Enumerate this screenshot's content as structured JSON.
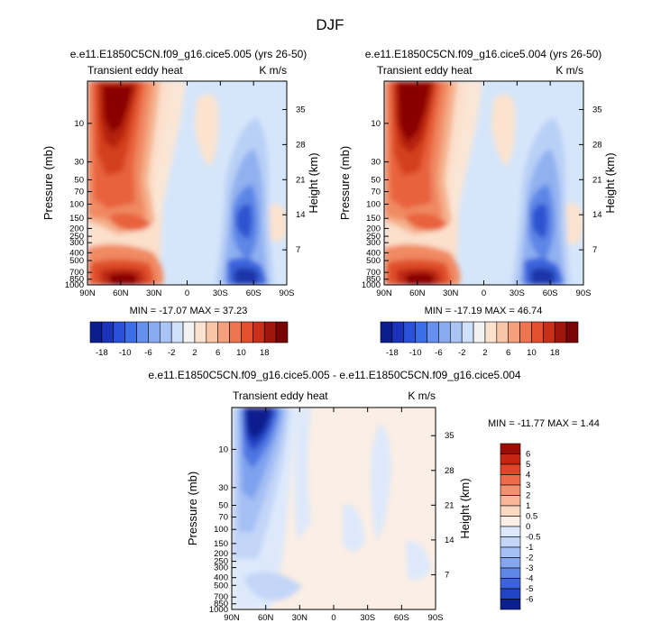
{
  "main_title": "DJF",
  "panel_left": {
    "title": "e.e11.E1850C5CN.f09_g16.cice5.005 (yrs 26-50)",
    "left_label": "Transient eddy heat",
    "units": "K m/s",
    "min_max": "MIN = -17.07   MAX =  37.23"
  },
  "panel_right": {
    "title": "e.e11.E1850C5CN.f09_g16.cice5.004 (yrs 26-50)",
    "left_label": "Transient eddy heat",
    "units": "K m/s",
    "min_max": "MIN = -17.19   MAX =  46.74"
  },
  "panel_diff": {
    "title": "e.e11.E1850C5CN.f09_g16.cice5.005 - e.e11.E1850C5CN.f09_g16.cice5.004",
    "left_label": "Transient eddy heat",
    "units": "K m/s",
    "min_max": "MIN = -11.77   MAX =   1.44"
  },
  "chart_data": {
    "type": "heatmap",
    "plot_kind": "latitude-pressure contour",
    "xlabel": "",
    "ylabel": "Pressure (mb)",
    "y2label": "Height (km)",
    "x_ticks": [
      "90N",
      "60N",
      "30N",
      "0",
      "30S",
      "60S",
      "90S"
    ],
    "x_values": [
      90,
      60,
      30,
      0,
      -30,
      -60,
      -90
    ],
    "y_ticks": [
      "10",
      "30",
      "50",
      "70",
      "100",
      "150",
      "200",
      "250",
      "300",
      "400",
      "500",
      "700",
      "850",
      "1000"
    ],
    "y_values": [
      10,
      30,
      50,
      70,
      100,
      150,
      200,
      250,
      300,
      400,
      500,
      700,
      850,
      1000
    ],
    "y_range_mb": [
      3,
      1000
    ],
    "height_ticks": [
      "35",
      "28",
      "21",
      "14",
      "7"
    ],
    "height_values_km": [
      35,
      28,
      21,
      14,
      7
    ],
    "colorbar_main_labels": [
      "-18",
      "-10",
      "-6",
      "-2",
      "2",
      "6",
      "10",
      "18"
    ],
    "colorbar_main_levels": [
      -18,
      -14,
      -10,
      -8,
      -6,
      -4,
      -2,
      -1,
      1,
      2,
      4,
      6,
      8,
      10,
      14,
      18
    ],
    "colorbar_main_colors": [
      "#0b1e8c",
      "#1a33b8",
      "#2a52d8",
      "#3b6ee8",
      "#6690ee",
      "#8aabf2",
      "#abc4f6",
      "#cfe0fa",
      "#f2f2f2",
      "#fbe2cf",
      "#f8c6a6",
      "#f4a07c",
      "#ee7550",
      "#e2502e",
      "#c8301a",
      "#a0160c",
      "#7a0404"
    ],
    "colorbar_diff_labels": [
      "6",
      "5",
      "4",
      "3",
      "2",
      "1",
      "0.5",
      "0",
      "-0.5",
      "-1",
      "-2",
      "-3",
      "-4",
      "-5",
      "-6"
    ],
    "colorbar_diff_colors": [
      "#9b0c06",
      "#c52614",
      "#e2442a",
      "#ee6a48",
      "#f39070",
      "#f7b698",
      "#fbd8c0",
      "#fbeee4",
      "#dde9fb",
      "#c3d6f8",
      "#a5c0f4",
      "#83a6ef",
      "#5f86e8",
      "#3c63dc",
      "#2244c4",
      "#0c1f8e"
    ],
    "panels": [
      {
        "name": "005",
        "min": -17.07,
        "max": 37.23
      },
      {
        "name": "004",
        "min": -17.19,
        "max": 46.74
      },
      {
        "name": "005 - 004",
        "min": -11.77,
        "max": 1.44
      }
    ]
  }
}
